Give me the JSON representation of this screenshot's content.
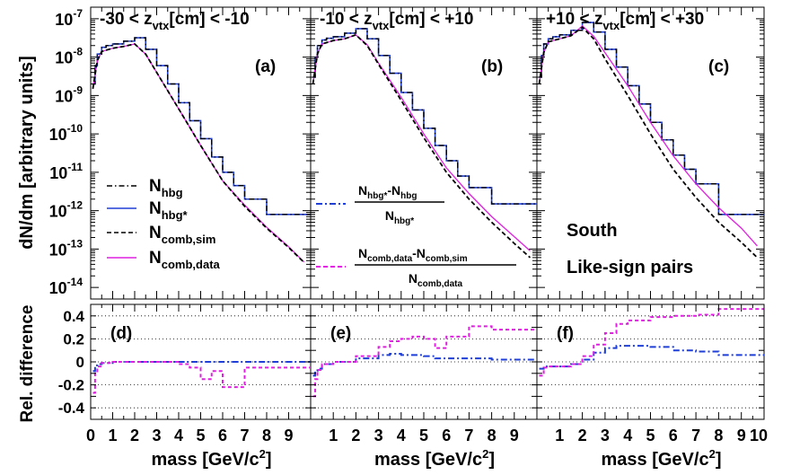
{
  "figure": {
    "ylabel_top": "dN/dm [arbitrary units]",
    "ylabel_bottom": "Rel. difference",
    "xlabel_main": "mass [GeV/c",
    "xlabel_sup": "2",
    "xlabel_close": "]",
    "colors": {
      "hbg": "#000000",
      "hbg_star": "#1f3fd6",
      "comb_sim": "#000000",
      "comb_data": "#e020e0",
      "ratio_hbg": "#1f3fd6",
      "ratio_comb": "#e020e0"
    }
  },
  "chart_data": [
    {
      "type": "line",
      "panel": "(a)",
      "title": "-30 < z_vtx[cm] < -10",
      "title_parts": {
        "pre": "-30 < z",
        "sub": "vtx",
        "post": "[cm] < -10"
      },
      "ylabel": "dN/dm [arbitrary units]",
      "yscale": "log",
      "ylim": [
        5e-15,
        2e-07
      ],
      "xlim": [
        0,
        10
      ],
      "yticks": [
        "10^-14",
        "10^-13",
        "10^-12",
        "10^-11",
        "10^-10",
        "10^-9",
        "10^-8",
        "10^-7"
      ],
      "legend": [
        {
          "main": "N",
          "sub": "hbg",
          "style": "dash-dot black"
        },
        {
          "main": "N",
          "sub": "hbg*",
          "style": "solid blue"
        },
        {
          "main": "N",
          "sub": "comb,sim",
          "style": "dashed black"
        },
        {
          "main": "N",
          "sub": "comb,data",
          "style": "solid magenta"
        }
      ],
      "series": [
        {
          "name": "N_hbg*",
          "x": [
            0.1,
            0.2,
            0.3,
            0.5,
            0.7,
            1.0,
            1.5,
            2.0,
            2.5,
            3.0,
            3.5,
            4.0,
            4.5,
            5.0,
            5.5,
            6.0,
            6.5,
            7.0,
            8.0,
            10.0
          ],
          "y": [
            2e-09,
            6e-09,
            1.2e-08,
            1.8e-08,
            2e-08,
            2.2e-08,
            2.6e-08,
            3.2e-08,
            1.6e-08,
            6e-09,
            2e-09,
            6.5e-10,
            2.2e-10,
            7.5e-11,
            2.5e-11,
            1e-11,
            4.5e-12,
            2e-12,
            8e-13,
            8e-13
          ]
        },
        {
          "name": "N_hbg",
          "x": [
            0.1,
            0.2,
            0.3,
            0.5,
            0.7,
            1.0,
            1.5,
            2.0,
            2.5,
            3.0,
            3.5,
            4.0,
            4.5,
            5.0,
            5.5,
            6.0,
            6.5,
            7.0,
            8.0,
            10.0
          ],
          "y": [
            2e-09,
            6e-09,
            1.2e-08,
            1.8e-08,
            2e-08,
            2.2e-08,
            2.6e-08,
            3.2e-08,
            1.6e-08,
            6e-09,
            2e-09,
            6.5e-10,
            2.2e-10,
            7.5e-11,
            2.5e-11,
            1e-11,
            4.5e-12,
            2e-12,
            8e-13,
            8e-13
          ]
        },
        {
          "name": "N_comb,sim",
          "x": [
            0.1,
            0.3,
            0.5,
            1.0,
            1.5,
            2.0,
            2.5,
            3.0,
            4.0,
            5.0,
            6.0,
            7.0,
            8.0,
            9.0,
            9.7
          ],
          "y": [
            1.5e-09,
            8e-09,
            1.4e-08,
            1.7e-08,
            1.9e-08,
            2.2e-08,
            1.2e-08,
            4e-09,
            4.5e-10,
            5e-11,
            6e-12,
            1.3e-12,
            3.5e-13,
            1.1e-13,
            4.5e-14
          ]
        },
        {
          "name": "N_comb,data",
          "x": [
            0.1,
            0.3,
            0.5,
            1.0,
            1.5,
            2.0,
            2.5,
            3.0,
            4.0,
            5.0,
            6.0,
            7.0,
            8.0,
            9.0,
            9.7
          ],
          "y": [
            1.5e-09,
            8e-09,
            1.4e-08,
            1.7e-08,
            1.9e-08,
            2.2e-08,
            1.2e-08,
            4e-09,
            4.5e-10,
            5e-11,
            6e-12,
            1.4e-12,
            3.7e-13,
            1.15e-13,
            4.6e-14
          ]
        }
      ]
    },
    {
      "type": "line",
      "panel": "(b)",
      "title": "-10 < z_vtx[cm] < +10",
      "title_parts": {
        "pre": "-10 < z",
        "sub": "vtx",
        "post": "[cm] < +10"
      },
      "yscale": "log",
      "ylim": [
        5e-15,
        2e-07
      ],
      "xlim": [
        0,
        10
      ],
      "legend": [
        {
          "num_a": "N",
          "num_a_sub": "hbg*",
          "num_b": "-N",
          "num_b_sub": "hbg",
          "den": "N",
          "den_sub": "hbg*",
          "style": "dash-dot blue"
        },
        {
          "num_a": "N",
          "num_a_sub": "comb,data",
          "num_b": "-N",
          "num_b_sub": "comb,sim",
          "den": "N",
          "den_sub": "comb,data",
          "style": "dashed magenta"
        }
      ],
      "series": [
        {
          "name": "N_hbg*",
          "x": [
            0.1,
            0.2,
            0.3,
            0.5,
            0.7,
            1.0,
            1.5,
            2.0,
            2.5,
            3.0,
            3.5,
            4.0,
            4.5,
            5.0,
            5.5,
            6.0,
            6.5,
            7.0,
            8.0,
            10.0
          ],
          "y": [
            3e-09,
            1e-08,
            2e-08,
            2.8e-08,
            3.1e-08,
            3.4e-08,
            4.2e-08,
            5.5e-08,
            3e-08,
            1.1e-08,
            3.8e-09,
            1.2e-09,
            4.2e-10,
            1.4e-10,
            5e-11,
            2e-11,
            8e-12,
            4e-12,
            1.5e-12,
            1.5e-12
          ]
        },
        {
          "name": "N_hbg",
          "x": [
            0.1,
            0.2,
            0.3,
            0.5,
            0.7,
            1.0,
            1.5,
            2.0,
            2.5,
            3.0,
            3.5,
            4.0,
            4.5,
            5.0,
            5.5,
            6.0,
            6.5,
            7.0,
            8.0,
            10.0
          ],
          "y": [
            3e-09,
            1e-08,
            2e-08,
            2.8e-08,
            3.1e-08,
            3.4e-08,
            4.2e-08,
            5.5e-08,
            3e-08,
            1.1e-08,
            3.8e-09,
            1.2e-09,
            4.2e-10,
            1.4e-10,
            5e-11,
            2e-11,
            8e-12,
            4e-12,
            1.5e-12,
            1.5e-12
          ]
        },
        {
          "name": "N_comb,sim",
          "x": [
            0.1,
            0.3,
            0.5,
            1.0,
            1.5,
            2.0,
            2.5,
            3.0,
            4.0,
            5.0,
            6.0,
            7.0,
            8.0,
            9.0,
            9.7
          ],
          "y": [
            2e-09,
            1.2e-08,
            2.2e-08,
            2.7e-08,
            3e-08,
            3.8e-08,
            2e-08,
            6.5e-09,
            7.5e-10,
            8e-11,
            1e-11,
            2e-12,
            5e-13,
            1.4e-13,
            6e-14
          ]
        },
        {
          "name": "N_comb,data",
          "x": [
            0.1,
            0.3,
            0.5,
            1.0,
            1.5,
            2.0,
            2.5,
            3.0,
            4.0,
            5.0,
            6.0,
            7.0,
            8.0,
            9.0,
            9.7
          ],
          "y": [
            2e-09,
            1.2e-08,
            2.2e-08,
            2.7e-08,
            3e-08,
            3.8e-08,
            2.1e-08,
            7e-09,
            9e-10,
            1e-10,
            1.3e-11,
            2.8e-12,
            7e-13,
            2.1e-13,
            9e-14
          ]
        }
      ]
    },
    {
      "type": "line",
      "panel": "(c)",
      "title": "+10 < z_vtx[cm] < +30",
      "title_parts": {
        "pre": "+10 < z",
        "sub": "vtx",
        "post": "[cm] < +30"
      },
      "yscale": "log",
      "ylim": [
        5e-15,
        2e-07
      ],
      "xlim": [
        0,
        10
      ],
      "annotations": [
        "South",
        "Like-sign pairs"
      ],
      "series": [
        {
          "name": "N_hbg*",
          "x": [
            0.1,
            0.2,
            0.3,
            0.5,
            0.7,
            1.0,
            1.5,
            2.0,
            2.5,
            3.0,
            3.5,
            4.0,
            4.5,
            5.0,
            5.5,
            6.0,
            6.5,
            7.0,
            8.0,
            10.0
          ],
          "y": [
            3e-09,
            1.1e-08,
            2.2e-08,
            3e-08,
            3.4e-08,
            3.8e-08,
            5e-08,
            8e-08,
            4.5e-08,
            1.6e-08,
            5.5e-09,
            1.8e-09,
            6e-10,
            2e-10,
            7e-11,
            2.8e-11,
            1.2e-11,
            5e-12,
            8e-13,
            8e-13
          ]
        },
        {
          "name": "N_hbg",
          "x": [
            0.1,
            0.2,
            0.3,
            0.5,
            0.7,
            1.0,
            1.5,
            2.0,
            2.5,
            3.0,
            3.5,
            4.0,
            4.5,
            5.0,
            5.5,
            6.0,
            6.5,
            7.0,
            8.0,
            10.0
          ],
          "y": [
            3e-09,
            1.1e-08,
            2.2e-08,
            3e-08,
            3.4e-08,
            3.8e-08,
            5e-08,
            8e-08,
            4.5e-08,
            1.6e-08,
            5.5e-09,
            1.8e-09,
            6e-10,
            2e-10,
            7e-11,
            2.8e-11,
            1.2e-11,
            5e-12,
            8e-13,
            8e-13
          ]
        },
        {
          "name": "N_comb,sim",
          "x": [
            0.1,
            0.3,
            0.5,
            1.0,
            1.5,
            2.0,
            2.5,
            3.0,
            4.0,
            5.0,
            6.0,
            7.0,
            8.0,
            9.0,
            9.7
          ],
          "y": [
            2e-09,
            1.3e-08,
            2.5e-08,
            3e-08,
            3.6e-08,
            6e-08,
            3e-08,
            9e-09,
            1e-09,
            1e-10,
            1.2e-11,
            2.2e-12,
            5e-13,
            1.5e-13,
            6e-14
          ]
        },
        {
          "name": "N_comb,data",
          "x": [
            0.1,
            0.3,
            0.5,
            1.0,
            1.5,
            2.0,
            2.5,
            3.0,
            4.0,
            5.0,
            6.0,
            7.0,
            8.0,
            9.0,
            9.7
          ],
          "y": [
            2e-09,
            1.3e-08,
            2.5e-08,
            3e-08,
            3.6e-08,
            6.5e-08,
            3.5e-08,
            1.3e-08,
            1.8e-09,
            2e-10,
            2.7e-11,
            5e-12,
            1.2e-12,
            3.5e-13,
            1.2e-13
          ]
        }
      ]
    },
    {
      "type": "line",
      "panel": "(d)",
      "ylabel": "Rel. difference",
      "xlabel": "mass [GeV/c^2]",
      "ylim": [
        -0.5,
        0.5
      ],
      "xlim": [
        0,
        10
      ],
      "xticks": [
        "0",
        "1",
        "2",
        "3",
        "4",
        "5",
        "6",
        "7",
        "8",
        "9"
      ],
      "yticks": [
        "-0.4",
        "-0.2",
        "0",
        "0.2",
        "0.4"
      ],
      "grid": true,
      "series": [
        {
          "name": "(N_hbg*-N_hbg)/N_hbg*",
          "x": [
            0.1,
            0.2,
            0.3,
            0.5,
            1.0,
            2.0,
            3.0,
            4.0,
            5.0,
            6.0,
            7.0,
            8.0,
            9.0,
            10.0
          ],
          "y": [
            -0.08,
            -0.03,
            -0.02,
            -0.01,
            0.0,
            0.0,
            0.0,
            0.0,
            0.0,
            0.0,
            0.0,
            0.0,
            0.0,
            0.0
          ]
        },
        {
          "name": "(N_comb,data-N_comb,sim)/N_comb,data",
          "x": [
            0.1,
            0.2,
            0.3,
            0.5,
            1.0,
            2.0,
            3.0,
            4.0,
            4.5,
            5.0,
            5.5,
            6.0,
            6.5,
            7.0,
            8.0,
            9.0,
            10.0
          ],
          "y": [
            -0.27,
            -0.1,
            -0.04,
            -0.01,
            0.0,
            0.0,
            0.0,
            -0.02,
            -0.05,
            -0.15,
            -0.08,
            -0.22,
            -0.22,
            -0.05,
            -0.05,
            -0.05,
            -0.05
          ]
        }
      ]
    },
    {
      "type": "line",
      "panel": "(e)",
      "xlabel": "mass [GeV/c^2]",
      "ylim": [
        -0.5,
        0.5
      ],
      "xlim": [
        0,
        10
      ],
      "xticks": [
        "1",
        "2",
        "3",
        "4",
        "5",
        "6",
        "7",
        "8",
        "9"
      ],
      "grid": true,
      "series": [
        {
          "name": "(N_hbg*-N_hbg)/N_hbg*",
          "x": [
            0.1,
            0.2,
            0.3,
            0.5,
            1.0,
            2.0,
            3.0,
            3.5,
            4.0,
            4.5,
            5.0,
            5.5,
            6.0,
            7.0,
            8.0,
            9.0,
            10.0
          ],
          "y": [
            -0.12,
            -0.08,
            -0.06,
            -0.02,
            0.0,
            0.03,
            0.06,
            0.07,
            0.06,
            0.06,
            0.05,
            0.03,
            0.03,
            0.03,
            0.02,
            0.02,
            0.02
          ]
        },
        {
          "name": "(N_comb,data-N_comb,sim)/N_comb,data",
          "x": [
            0.1,
            0.2,
            0.3,
            0.5,
            1.0,
            2.0,
            3.0,
            3.5,
            4.0,
            4.5,
            5.0,
            5.5,
            6.0,
            7.0,
            8.0,
            9.0,
            10.0
          ],
          "y": [
            -0.3,
            -0.15,
            -0.07,
            -0.02,
            0.0,
            0.05,
            0.13,
            0.18,
            0.2,
            0.22,
            0.2,
            0.12,
            0.22,
            0.31,
            0.28,
            0.28,
            0.28
          ]
        }
      ]
    },
    {
      "type": "line",
      "panel": "(f)",
      "xlabel": "mass [GeV/c^2]",
      "ylim": [
        -0.5,
        0.5
      ],
      "xlim": [
        0,
        10
      ],
      "xticks": [
        "1",
        "2",
        "3",
        "4",
        "5",
        "6",
        "7",
        "8",
        "9",
        "10"
      ],
      "grid": true,
      "series": [
        {
          "name": "(N_hbg*-N_hbg)/N_hbg*",
          "x": [
            0.1,
            0.3,
            0.5,
            1.0,
            1.5,
            2.0,
            2.5,
            3.0,
            3.5,
            4.0,
            5.0,
            6.0,
            7.0,
            8.0,
            9.0,
            10.0
          ],
          "y": [
            -0.06,
            -0.04,
            -0.04,
            -0.04,
            -0.02,
            0.02,
            0.08,
            0.12,
            0.14,
            0.14,
            0.13,
            0.1,
            0.09,
            0.06,
            0.06,
            0.06
          ]
        },
        {
          "name": "(N_comb,data-N_comb,sim)/N_comb,data",
          "x": [
            0.1,
            0.3,
            0.5,
            1.0,
            1.5,
            2.0,
            2.5,
            3.0,
            3.5,
            4.0,
            5.0,
            6.0,
            7.0,
            8.0,
            9.0,
            10.0
          ],
          "y": [
            -0.12,
            -0.05,
            -0.04,
            -0.04,
            -0.02,
            0.05,
            0.15,
            0.25,
            0.33,
            0.36,
            0.39,
            0.4,
            0.41,
            0.46,
            0.46,
            0.46
          ]
        }
      ]
    }
  ]
}
